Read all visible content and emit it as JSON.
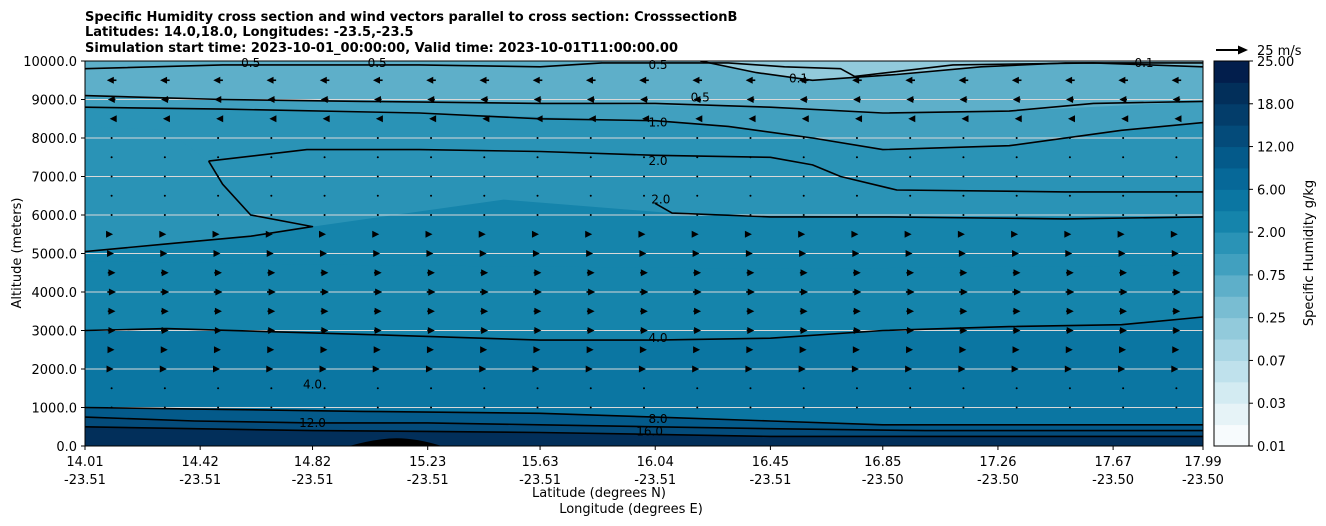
{
  "chart_data": {
    "type": "contourf",
    "title_lines": [
      "Specific Humidity cross section and wind vectors parallel to cross section: CrosssectionB",
      "Latitudes: 14.0,18.0, Longitudes: -23.5,-23.5",
      "Simulation start time: 2023-10-01_00:00:00, Valid time: 2023-10-01T11:00:00.00"
    ],
    "xlabel_lines": [
      "Latitude (degrees N)",
      "Longitude (degrees E)"
    ],
    "ylabel": "Altitude (meters)",
    "ylim": [
      0,
      10000
    ],
    "yticks": [
      {
        "value": 0,
        "label": "0.0"
      },
      {
        "value": 1000,
        "label": "1000.0"
      },
      {
        "value": 2000,
        "label": "2000.0"
      },
      {
        "value": 3000,
        "label": "3000.0"
      },
      {
        "value": 4000,
        "label": "4000.0"
      },
      {
        "value": 5000,
        "label": "5000.0"
      },
      {
        "value": 6000,
        "label": "6000.0"
      },
      {
        "value": 7000,
        "label": "7000.0"
      },
      {
        "value": 8000,
        "label": "8000.0"
      },
      {
        "value": 9000,
        "label": "9000.0"
      },
      {
        "value": 10000,
        "label": "10000.0"
      }
    ],
    "xticks": [
      {
        "lat": "14.01",
        "lon": "-23.51"
      },
      {
        "lat": "14.42",
        "lon": "-23.51"
      },
      {
        "lat": "14.82",
        "lon": "-23.51"
      },
      {
        "lat": "15.23",
        "lon": "-23.51"
      },
      {
        "lat": "15.63",
        "lon": "-23.51"
      },
      {
        "lat": "16.04",
        "lon": "-23.51"
      },
      {
        "lat": "16.45",
        "lon": "-23.51"
      },
      {
        "lat": "16.85",
        "lon": "-23.50"
      },
      {
        "lat": "17.26",
        "lon": "-23.50"
      },
      {
        "lat": "17.67",
        "lon": "-23.50"
      },
      {
        "lat": "17.99",
        "lon": "-23.50"
      }
    ],
    "colorbar": {
      "label": "Specific Humidity g/kg",
      "tick_labels": [
        "0.01",
        "0.03",
        "0.07",
        "0.25",
        "0.75",
        "2.00",
        "6.00",
        "12.00",
        "18.00",
        "25.00"
      ],
      "levels": [
        0.01,
        0.02,
        0.03,
        0.05,
        0.07,
        0.1,
        0.25,
        0.5,
        0.75,
        1.0,
        2.0,
        4.0,
        6.0,
        8.0,
        12.0,
        16.0,
        18.0,
        20.0,
        25.0
      ],
      "colors": [
        "#f7fbfd",
        "#e6f3f7",
        "#d3ebf2",
        "#bfe1ec",
        "#a9d6e4",
        "#92cadb",
        "#79bdd2",
        "#5eafc9",
        "#41a0bf",
        "#2a93b6",
        "#1584ab",
        "#0b76a2",
        "#066898",
        "#045a8a",
        "#044b7a",
        "#033d6a",
        "#022f5a",
        "#021e4c"
      ]
    },
    "vector_key": {
      "label": "25 m/s",
      "speed": 25
    },
    "contour_labels": [
      {
        "text": "0.5",
        "lat": 14.6,
        "alt": 9950
      },
      {
        "text": "0.5",
        "lat": 15.05,
        "alt": 9950
      },
      {
        "text": "0.5",
        "lat": 16.05,
        "alt": 9900
      },
      {
        "text": "0.1",
        "lat": 16.55,
        "alt": 9550
      },
      {
        "text": "0.1",
        "lat": 17.78,
        "alt": 9950
      },
      {
        "text": "0.5",
        "lat": 16.2,
        "alt": 9050
      },
      {
        "text": "1.0",
        "lat": 16.05,
        "alt": 8400
      },
      {
        "text": "2.0",
        "lat": 16.05,
        "alt": 7400
      },
      {
        "text": "2.0",
        "lat": 16.06,
        "alt": 6400
      },
      {
        "text": "4.0",
        "lat": 16.05,
        "alt": 2800
      },
      {
        "text": "4.0",
        "lat": 14.82,
        "alt": 1600
      },
      {
        "text": "12.0",
        "lat": 14.82,
        "alt": 600
      },
      {
        "text": "8.0",
        "lat": 16.05,
        "alt": 700
      },
      {
        "text": "16.0",
        "lat": 16.02,
        "alt": 380
      }
    ],
    "contours": [
      {
        "level": 0.5,
        "points": [
          [
            14.01,
            9800
          ],
          [
            14.5,
            9900
          ],
          [
            15.2,
            9900
          ],
          [
            15.63,
            9850
          ],
          [
            15.85,
            9950
          ],
          [
            16.1,
            9950
          ],
          [
            16.3,
            9950
          ],
          [
            16.5,
            9850
          ],
          [
            16.7,
            9800
          ],
          [
            16.75,
            9600
          ],
          [
            17.1,
            9900
          ],
          [
            17.6,
            9950
          ],
          [
            17.99,
            9850
          ]
        ]
      },
      {
        "level": 0.1,
        "points": [
          [
            16.2,
            10000
          ],
          [
            16.4,
            9700
          ],
          [
            16.6,
            9500
          ],
          [
            16.9,
            9650
          ],
          [
            17.2,
            9850
          ],
          [
            17.5,
            9950
          ],
          [
            17.99,
            9950
          ]
        ]
      },
      {
        "level": 0.5,
        "points": [
          [
            14.01,
            9100
          ],
          [
            14.5,
            9000
          ],
          [
            15.0,
            8950
          ],
          [
            15.63,
            8900
          ],
          [
            16.04,
            8900
          ],
          [
            16.45,
            8800
          ],
          [
            16.85,
            8650
          ],
          [
            17.3,
            8700
          ],
          [
            17.6,
            8900
          ],
          [
            17.99,
            8950
          ]
        ]
      },
      {
        "level": 1.0,
        "points": [
          [
            14.01,
            8800
          ],
          [
            14.5,
            8750
          ],
          [
            15.2,
            8650
          ],
          [
            15.63,
            8500
          ],
          [
            16.04,
            8450
          ],
          [
            16.3,
            8300
          ],
          [
            16.6,
            8000
          ],
          [
            16.85,
            7700
          ],
          [
            17.3,
            7800
          ],
          [
            17.7,
            8200
          ],
          [
            17.99,
            8400
          ]
        ]
      },
      {
        "level": 2.0,
        "points": [
          [
            14.45,
            7400
          ],
          [
            14.8,
            7700
          ],
          [
            15.2,
            7700
          ],
          [
            15.63,
            7650
          ],
          [
            16.04,
            7550
          ],
          [
            16.45,
            7500
          ],
          [
            16.6,
            7300
          ],
          [
            16.7,
            7000
          ],
          [
            16.9,
            6650
          ],
          [
            17.5,
            6600
          ],
          [
            17.99,
            6600
          ]
        ]
      },
      {
        "level": 2.0,
        "points": [
          [
            14.01,
            5050
          ],
          [
            14.3,
            5250
          ],
          [
            14.6,
            5450
          ],
          [
            14.82,
            5700
          ],
          [
            14.6,
            6000
          ],
          [
            14.5,
            6800
          ],
          [
            14.45,
            7400
          ]
        ]
      },
      {
        "level": 2.0,
        "points": [
          [
            16.04,
            6300
          ],
          [
            16.1,
            6050
          ],
          [
            16.45,
            5950
          ],
          [
            16.85,
            5950
          ],
          [
            17.5,
            5900
          ],
          [
            17.99,
            5950
          ]
        ]
      },
      {
        "level": 4.0,
        "points": [
          [
            14.01,
            3000
          ],
          [
            14.3,
            3050
          ],
          [
            15.0,
            2900
          ],
          [
            15.63,
            2750
          ],
          [
            16.04,
            2750
          ],
          [
            16.45,
            2800
          ],
          [
            16.85,
            3000
          ],
          [
            17.3,
            3100
          ],
          [
            17.7,
            3150
          ],
          [
            17.99,
            3350
          ]
        ]
      },
      {
        "level": 8.0,
        "points": [
          [
            14.01,
            1000
          ],
          [
            14.5,
            950
          ],
          [
            15.0,
            900
          ],
          [
            15.63,
            850
          ],
          [
            16.04,
            750
          ],
          [
            16.45,
            650
          ],
          [
            16.85,
            550
          ],
          [
            17.3,
            550
          ],
          [
            17.99,
            550
          ]
        ]
      },
      {
        "level": 12.0,
        "points": [
          [
            14.01,
            750
          ],
          [
            14.4,
            650
          ],
          [
            14.82,
            600
          ],
          [
            15.23,
            600
          ],
          [
            15.63,
            550
          ],
          [
            16.04,
            500
          ],
          [
            16.45,
            450
          ],
          [
            17.0,
            400
          ],
          [
            17.99,
            400
          ]
        ]
      },
      {
        "level": 16.0,
        "points": [
          [
            14.01,
            500
          ],
          [
            14.4,
            450
          ],
          [
            14.82,
            400
          ],
          [
            15.23,
            380
          ],
          [
            15.63,
            350
          ],
          [
            16.04,
            300
          ],
          [
            16.45,
            250
          ],
          [
            17.0,
            250
          ],
          [
            17.99,
            250
          ]
        ]
      }
    ],
    "wind": {
      "note": "u component along section (m/s) by altitude row; positive = toward larger latitude",
      "rows": [
        {
          "alt": 9500,
          "u": -10
        },
        {
          "alt": 9000,
          "u": -8
        },
        {
          "alt": 8500,
          "u": -4
        },
        {
          "alt": 8000,
          "u": -2
        },
        {
          "alt": 7500,
          "u": 0.5
        },
        {
          "alt": 7000,
          "u": 0.5
        },
        {
          "alt": 6500,
          "u": 0.8
        },
        {
          "alt": 6000,
          "u": 1.5
        },
        {
          "alt": 5500,
          "u": 3
        },
        {
          "alt": 5000,
          "u": 5
        },
        {
          "alt": 4500,
          "u": 8
        },
        {
          "alt": 4000,
          "u": 9
        },
        {
          "alt": 3500,
          "u": 8
        },
        {
          "alt": 3000,
          "u": 8
        },
        {
          "alt": 2500,
          "u": 6
        },
        {
          "alt": 2000,
          "u": 4
        },
        {
          "alt": 1500,
          "u": 2
        },
        {
          "alt": 1000,
          "u": 1
        }
      ]
    }
  }
}
